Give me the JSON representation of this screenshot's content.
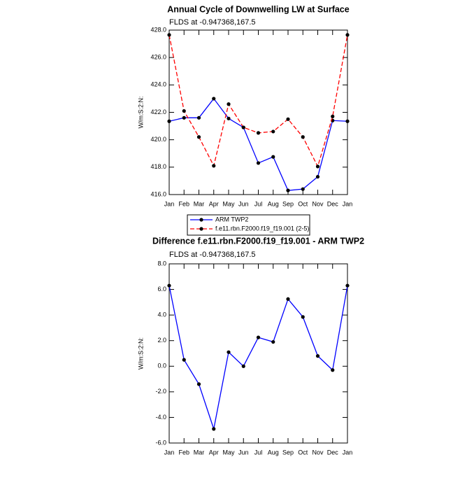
{
  "chart_data": [
    {
      "type": "line",
      "title": "Annual Cycle of Downwelling LW at Surface",
      "subtitle": "FLDS at -0.947368,167.5",
      "ylabel": "W/m:S:2:N:",
      "categories": [
        "Jan",
        "Feb",
        "Mar",
        "Apr",
        "May",
        "Jun",
        "Jul",
        "Aug",
        "Sep",
        "Oct",
        "Nov",
        "Dec",
        "Jan"
      ],
      "series": [
        {
          "name": "ARM TWP2",
          "color": "#0000ff",
          "dash": false,
          "values": [
            421.35,
            421.6,
            421.6,
            423.0,
            421.55,
            420.9,
            418.3,
            418.75,
            416.3,
            416.4,
            417.3,
            421.4,
            421.35
          ]
        },
        {
          "name": "f.e11.rbn.F2000.f19_f19.001 (2-5)",
          "color": "#ff0000",
          "dash": true,
          "values": [
            427.65,
            422.1,
            420.2,
            418.1,
            422.6,
            420.9,
            420.5,
            420.6,
            421.5,
            420.2,
            418.05,
            421.7,
            427.65
          ]
        }
      ],
      "ylim": [
        416,
        428
      ],
      "yticks": [
        {
          "value": 416,
          "label": "416.0"
        },
        {
          "value": 418,
          "label": "418.0"
        },
        {
          "value": 420,
          "label": "420.0"
        },
        {
          "value": 422,
          "label": "422.0"
        },
        {
          "value": 424,
          "label": "424.0"
        },
        {
          "value": 426,
          "label": "426.0"
        },
        {
          "value": 428,
          "label": "428.0"
        }
      ],
      "legend": "bottom"
    },
    {
      "type": "line",
      "title": "Difference f.e11.rbn.F2000.f19_f19.001 - ARM TWP2",
      "subtitle": "FLDS at -0.947368,167.5",
      "ylabel": "W/m:S:2:N:",
      "categories": [
        "Jan",
        "Feb",
        "Mar",
        "Apr",
        "May",
        "Jun",
        "Jul",
        "Aug",
        "Sep",
        "Oct",
        "Nov",
        "Dec",
        "Jan"
      ],
      "series": [
        {
          "color": "#0000ff",
          "dash": false,
          "values": [
            6.3,
            0.5,
            -1.4,
            -4.9,
            1.1,
            0.0,
            2.25,
            1.9,
            5.25,
            3.85,
            0.8,
            -0.3,
            6.3
          ]
        }
      ],
      "ylim": [
        -6,
        8
      ],
      "yticks": [
        {
          "value": -6,
          "label": "-6.0"
        },
        {
          "value": -4,
          "label": "-4.0"
        },
        {
          "value": -2,
          "label": "-2.0"
        },
        {
          "value": 0,
          "label": "0.0"
        },
        {
          "value": 2,
          "label": "2.0"
        },
        {
          "value": 4,
          "label": "4.0"
        },
        {
          "value": 6,
          "label": "6.0"
        },
        {
          "value": 8,
          "label": "8.0"
        }
      ]
    }
  ]
}
